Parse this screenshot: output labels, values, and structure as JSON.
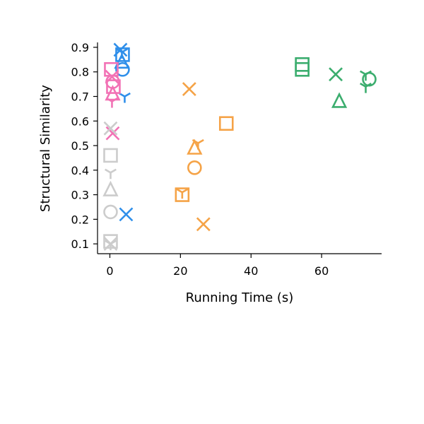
{
  "chart_data": {
    "type": "scatter",
    "title": "",
    "xlabel": "Running Time (s)",
    "ylabel": "Structural Similarity",
    "xlim": [
      -3.5,
      77
    ],
    "ylim": [
      0.06,
      0.92
    ],
    "xticks": [
      0,
      20,
      40,
      60
    ],
    "yticks": [
      0.1,
      0.2,
      0.3,
      0.4,
      0.5,
      0.6,
      0.7,
      0.8,
      0.9
    ],
    "grid": false,
    "legend": "none",
    "series": [
      {
        "color": "#2f8fea",
        "points": [
          {
            "x": 3.0,
            "y": 0.89,
            "marker": "x"
          },
          {
            "x": 3.4,
            "y": 0.88,
            "marker": "tri"
          },
          {
            "x": 3.6,
            "y": 0.87,
            "marker": "square"
          },
          {
            "x": 3.4,
            "y": 0.84,
            "marker": "triangle"
          },
          {
            "x": 3.6,
            "y": 0.81,
            "marker": "circle"
          },
          {
            "x": 4.2,
            "y": 0.7,
            "marker": "tri"
          },
          {
            "x": 4.6,
            "y": 0.22,
            "marker": "x"
          }
        ]
      },
      {
        "color": "#f272b5",
        "points": [
          {
            "x": 0.4,
            "y": 0.81,
            "marker": "square"
          },
          {
            "x": 0.6,
            "y": 0.78,
            "marker": "x"
          },
          {
            "x": 0.8,
            "y": 0.76,
            "marker": "circle"
          },
          {
            "x": 1.0,
            "y": 0.74,
            "marker": "square"
          },
          {
            "x": 0.8,
            "y": 0.71,
            "marker": "triangle"
          },
          {
            "x": 0.6,
            "y": 0.68,
            "marker": "tri"
          },
          {
            "x": 0.8,
            "y": 0.55,
            "marker": "x"
          }
        ]
      },
      {
        "color": "#f5a347",
        "points": [
          {
            "x": 22.5,
            "y": 0.73,
            "marker": "x"
          },
          {
            "x": 33.0,
            "y": 0.59,
            "marker": "square"
          },
          {
            "x": 25.0,
            "y": 0.51,
            "marker": "tri"
          },
          {
            "x": 24.0,
            "y": 0.49,
            "marker": "triangle"
          },
          {
            "x": 24.0,
            "y": 0.41,
            "marker": "circle"
          },
          {
            "x": 20.5,
            "y": 0.31,
            "marker": "tri"
          },
          {
            "x": 20.5,
            "y": 0.3,
            "marker": "square"
          },
          {
            "x": 26.5,
            "y": 0.18,
            "marker": "x"
          }
        ]
      },
      {
        "color": "#3bad6e",
        "points": [
          {
            "x": 54.5,
            "y": 0.83,
            "marker": "square"
          },
          {
            "x": 54.5,
            "y": 0.81,
            "marker": "square"
          },
          {
            "x": 64.0,
            "y": 0.79,
            "marker": "x"
          },
          {
            "x": 72.5,
            "y": 0.79,
            "marker": "tri"
          },
          {
            "x": 73.5,
            "y": 0.77,
            "marker": "circle"
          },
          {
            "x": 72.5,
            "y": 0.74,
            "marker": "tri"
          },
          {
            "x": 65.0,
            "y": 0.68,
            "marker": "triangle"
          }
        ]
      },
      {
        "color": "#cccccc",
        "points": [
          {
            "x": 0.2,
            "y": 0.57,
            "marker": "x"
          },
          {
            "x": 0.2,
            "y": 0.46,
            "marker": "square"
          },
          {
            "x": 0.2,
            "y": 0.39,
            "marker": "tri"
          },
          {
            "x": 0.2,
            "y": 0.32,
            "marker": "triangle"
          },
          {
            "x": 0.2,
            "y": 0.23,
            "marker": "circle"
          },
          {
            "x": 0.2,
            "y": 0.11,
            "marker": "square"
          },
          {
            "x": 0.2,
            "y": 0.1,
            "marker": "x"
          },
          {
            "x": 0.2,
            "y": 0.1,
            "marker": "tri"
          }
        ]
      }
    ]
  }
}
